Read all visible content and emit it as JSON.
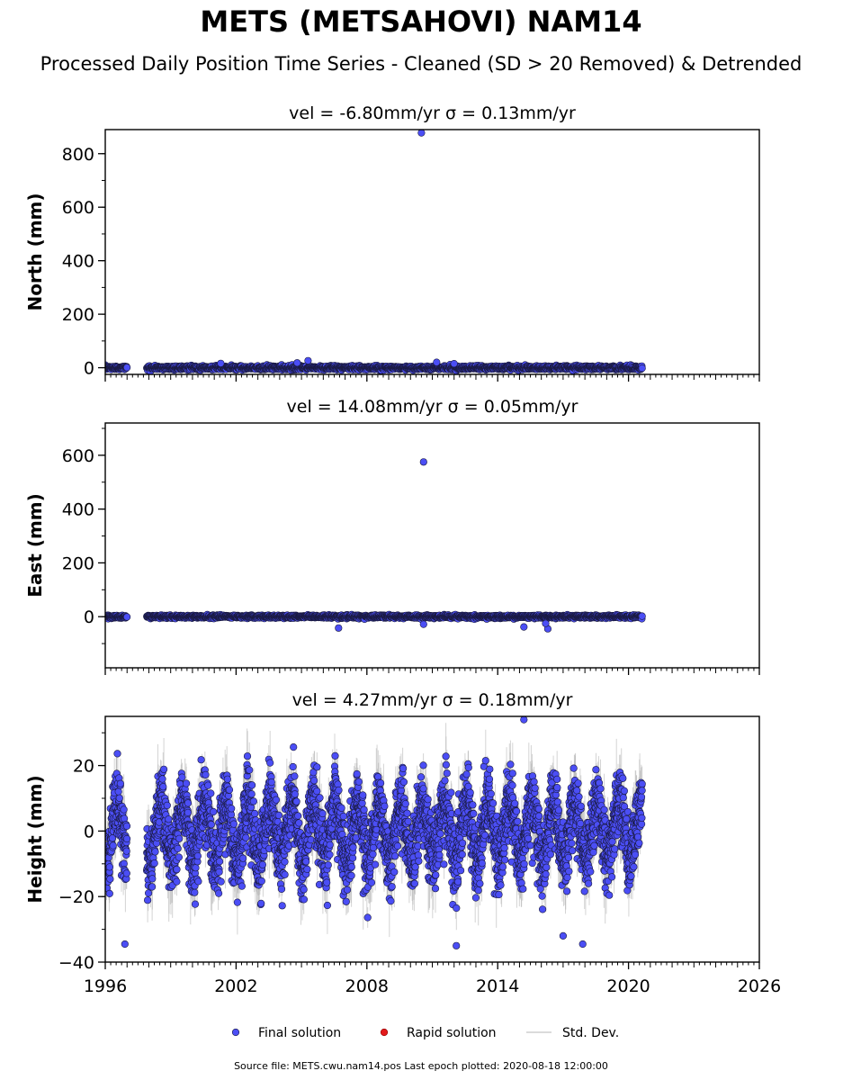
{
  "title": "METS (METSAHOVI) NAM14",
  "subtitle": "Processed Daily Position Time Series - Cleaned (SD > 20 Removed) & Detrended",
  "legend": {
    "items": [
      {
        "label": "Final solution",
        "color": "#4b4ef5"
      },
      {
        "label": "Rapid solution",
        "color": "#e31a1c"
      },
      {
        "label": "Std. Dev.",
        "color": "#cfcfcf"
      }
    ]
  },
  "footer": "Source file: METS.cwu.nam14.pos  Last epoch plotted: 2020-08-18 12:00:00",
  "colors": {
    "point_fill": "#4b4ef5",
    "point_edge": "#1a1a40",
    "sd_band": "#b0b0b0",
    "rapid": "#e31a1c"
  },
  "chart_data": [
    {
      "type": "scatter",
      "panel_title": "vel = -6.80mm/yr   σ = 0.13mm/yr",
      "ylabel": "North (mm)",
      "xlim": [
        1996,
        2026
      ],
      "ylim": [
        -25,
        890
      ],
      "yticks": [
        {
          "v": 0,
          "label": "0"
        },
        {
          "v": 200,
          "label": "200"
        },
        {
          "v": 400,
          "label": "400"
        },
        {
          "v": 600,
          "label": "600"
        },
        {
          "v": 800,
          "label": "800"
        }
      ],
      "x_span": [
        1996.0,
        2020.63
      ],
      "gaps": [
        [
          1997.0,
          1997.9
        ]
      ],
      "noise_amplitude_mm": 8,
      "outliers": [
        {
          "x": 2010.5,
          "y": 878
        },
        {
          "x": 2005.3,
          "y": 26
        },
        {
          "x": 2004.8,
          "y": 18
        },
        {
          "x": 2011.2,
          "y": 20
        },
        {
          "x": 2001.3,
          "y": 16
        },
        {
          "x": 2012.0,
          "y": 15
        }
      ]
    },
    {
      "type": "scatter",
      "panel_title": "vel = 14.08mm/yr   σ = 0.05mm/yr",
      "ylabel": "East (mm)",
      "xlim": [
        1996,
        2026
      ],
      "ylim": [
        -190,
        720
      ],
      "yticks": [
        {
          "v": 0,
          "label": "0"
        },
        {
          "v": 200,
          "label": "200"
        },
        {
          "v": 400,
          "label": "400"
        },
        {
          "v": 600,
          "label": "600"
        }
      ],
      "x_span": [
        1996.0,
        2020.63
      ],
      "gaps": [
        [
          1997.0,
          1997.9
        ]
      ],
      "noise_amplitude_mm": 6,
      "outliers": [
        {
          "x": 2010.6,
          "y": 575
        },
        {
          "x": 2006.7,
          "y": -42
        },
        {
          "x": 2015.2,
          "y": -38
        },
        {
          "x": 2016.3,
          "y": -45
        },
        {
          "x": 2010.6,
          "y": -28
        },
        {
          "x": 2016.2,
          "y": -25
        }
      ]
    },
    {
      "type": "scatter",
      "panel_title": "vel = 4.27mm/yr   σ = 0.18mm/yr",
      "ylabel": "Height (mm)",
      "xlim": [
        1996,
        2026
      ],
      "ylim": [
        -40,
        35
      ],
      "yticks": [
        {
          "v": -40,
          "label": "−40"
        },
        {
          "v": -20,
          "label": "−20"
        },
        {
          "v": 0,
          "label": "0"
        },
        {
          "v": 20,
          "label": "20"
        }
      ],
      "x_span": [
        1996.0,
        2020.63
      ],
      "gaps": [
        [
          1997.0,
          1997.9
        ]
      ],
      "noise_amplitude_mm": 9,
      "seasonal_amplitude_mm": 9,
      "outliers": [
        {
          "x": 2015.2,
          "y": 34
        },
        {
          "x": 1996.9,
          "y": -34.5
        },
        {
          "x": 2017.0,
          "y": -32
        },
        {
          "x": 2017.9,
          "y": -34.5
        },
        {
          "x": 2012.1,
          "y": -35
        }
      ]
    }
  ],
  "xticks": [
    {
      "v": 1996,
      "label": "1996"
    },
    {
      "v": 2002,
      "label": "2002"
    },
    {
      "v": 2008,
      "label": "2008"
    },
    {
      "v": 2014,
      "label": "2014"
    },
    {
      "v": 2020,
      "label": "2020"
    },
    {
      "v": 2026,
      "label": "2026"
    }
  ]
}
